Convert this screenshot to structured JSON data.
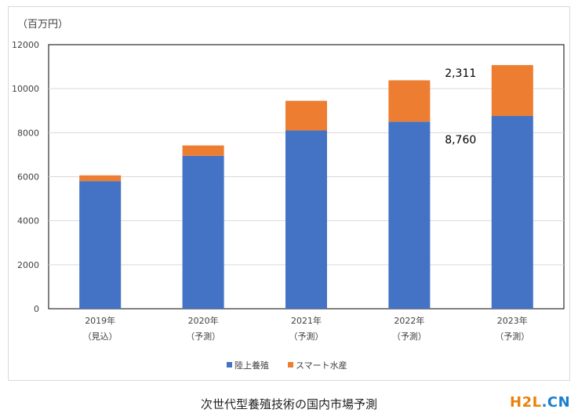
{
  "chart_data": {
    "type": "bar",
    "stacked": true,
    "unit_label": "（百万円）",
    "categories": [
      [
        "2019年",
        "（見込）"
      ],
      [
        "2020年",
        "（予測）"
      ],
      [
        "2021年",
        "（予測）"
      ],
      [
        "2022年",
        "（予測）"
      ],
      [
        "2023年",
        "（予測）"
      ]
    ],
    "series": [
      {
        "name": "陸上養殖",
        "color": "#4472c4",
        "values": [
          5800,
          6950,
          8100,
          8500,
          8760
        ]
      },
      {
        "name": "スマート水産",
        "color": "#ed7d31",
        "values": [
          260,
          470,
          1350,
          1880,
          2311
        ]
      }
    ],
    "ylim": [
      0,
      12000
    ],
    "yticks": [
      0,
      2000,
      4000,
      6000,
      8000,
      10000,
      12000
    ],
    "annotations": [
      {
        "text": "2,311",
        "category_index": 4,
        "series_index": 1
      },
      {
        "text": "8,760",
        "category_index": 4,
        "series_index": 0
      }
    ],
    "grid": true,
    "legend_position": "bottom"
  },
  "caption": "次世代型養殖技術の国内市場予測",
  "brand": {
    "part1": "H2L",
    "part2": ".CN"
  }
}
